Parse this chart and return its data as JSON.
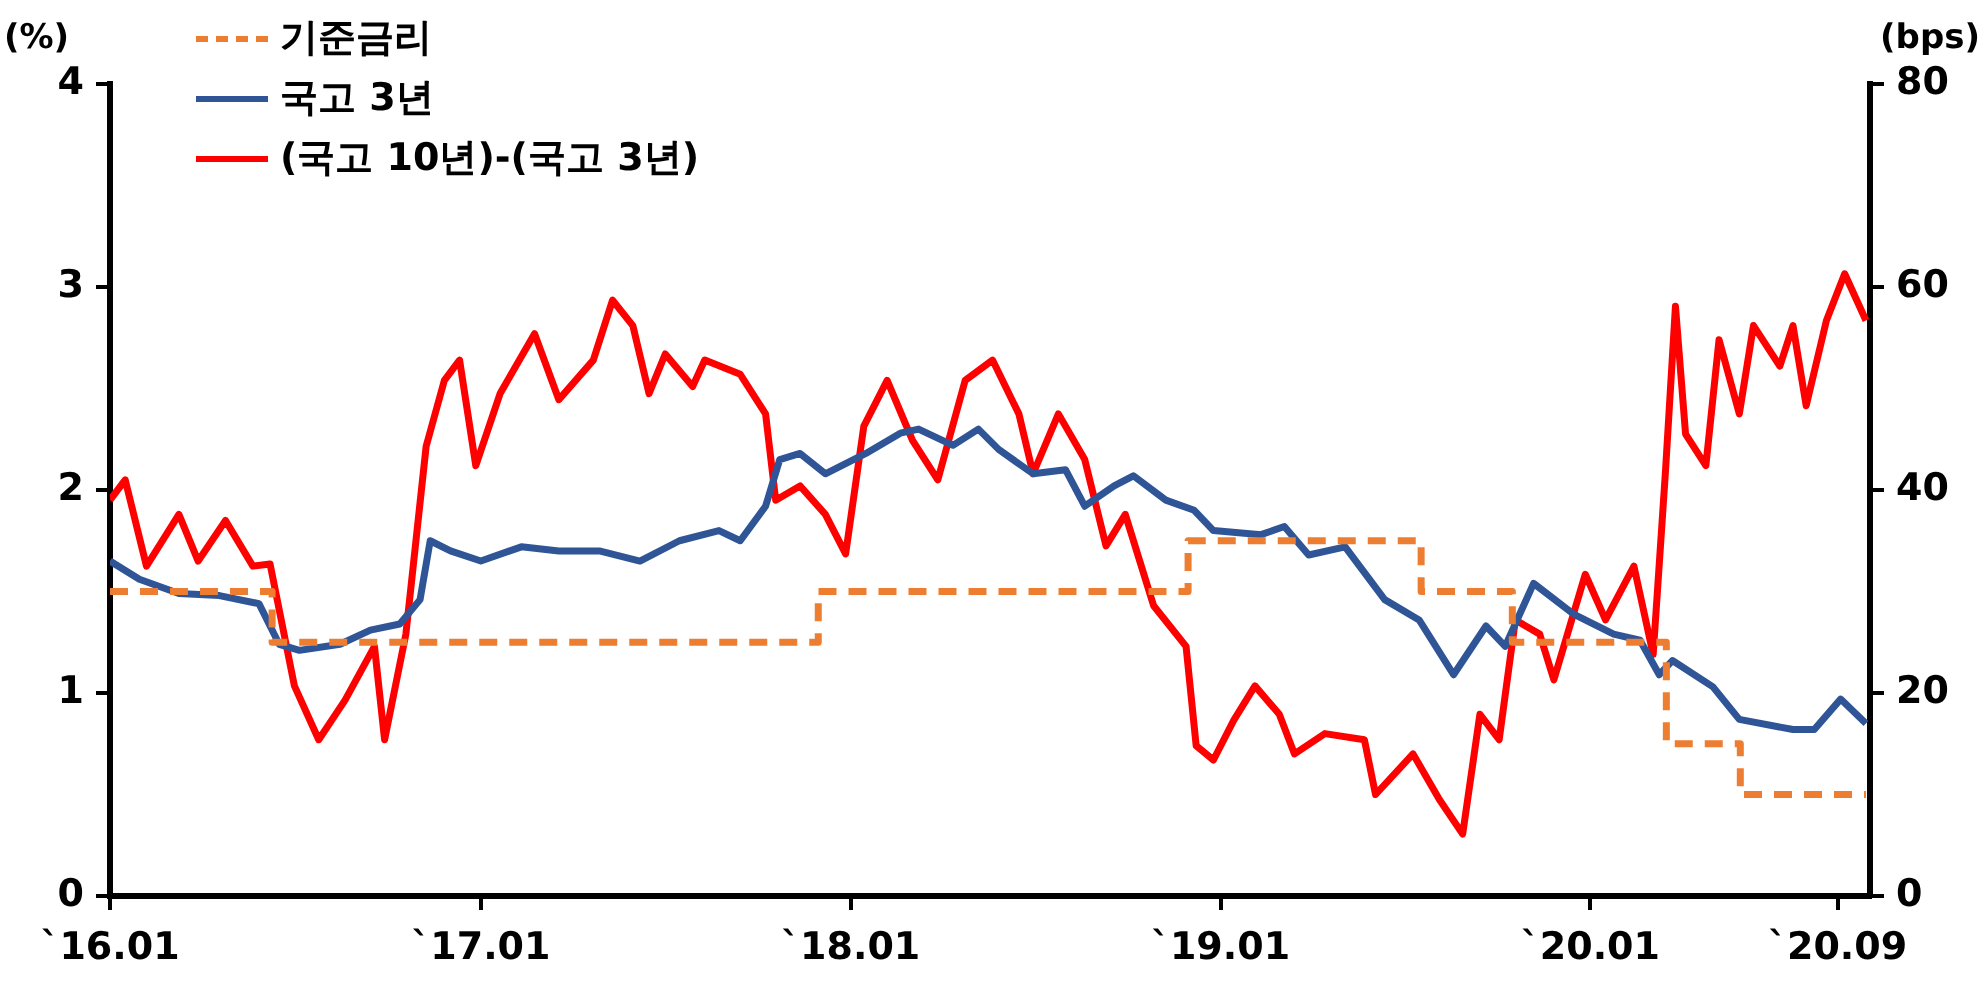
{
  "chart_data": {
    "type": "line",
    "ylabel": "(%)",
    "y2label": "(bps)",
    "xlim": [
      "2016-01-01",
      "2020-10-03"
    ],
    "xticks": [
      {
        "value": "2016-01",
        "label": "`16.01"
      },
      {
        "value": "2017-01",
        "label": "`17.01"
      },
      {
        "value": "2018-01",
        "label": "`18.01"
      },
      {
        "value": "2019-01",
        "label": "`19.01"
      },
      {
        "value": "2020-01",
        "label": "`20.01"
      },
      {
        "value": "2020-09",
        "label": "`20.09"
      }
    ],
    "ylim": [
      0,
      4
    ],
    "yticks": [
      0,
      1,
      2,
      3,
      4
    ],
    "y2lim": [
      0,
      80
    ],
    "y2ticks": [
      0,
      20,
      40,
      60,
      80
    ],
    "grid": false,
    "legend": "top left",
    "marker": "none",
    "series": [
      {
        "name": "기준금리",
        "type": "step",
        "line_style": "dashed",
        "color": "#ed7d31",
        "x": [
          "2016-01-01",
          "2016-06-09",
          "2017-11-30",
          "2018-11-30",
          "2019-07-18",
          "2019-10-16",
          "2020-03-16",
          "2020-05-28",
          "2020-09-29"
        ],
        "values": [
          1.5,
          1.25,
          1.5,
          1.75,
          1.5,
          1.25,
          0.75,
          0.5,
          0.5
        ]
      },
      {
        "name": "국고 3년",
        "color": "#2f5597",
        "x": [
          "2016-01-01",
          "2016-01-30",
          "2016-03-09",
          "2016-04-18",
          "2016-05-27",
          "2016-06-16",
          "2016-07-06",
          "2016-08-15",
          "2016-09-14",
          "2016-10-13",
          "2016-11-02",
          "2016-11-12",
          "2016-12-02",
          "2017-01-01",
          "2017-02-10",
          "2017-03-19",
          "2017-04-28",
          "2017-06-07",
          "2017-07-16",
          "2017-08-24",
          "2017-09-14",
          "2017-10-09",
          "2017-10-23",
          "2017-11-12",
          "2017-12-07",
          "2018-01-16",
          "2018-02-19",
          "2018-03-09",
          "2018-04-12",
          "2018-05-07",
          "2018-05-27",
          "2018-06-30",
          "2018-08-01",
          "2018-08-20",
          "2018-09-18",
          "2018-10-07",
          "2018-11-08",
          "2018-12-06",
          "2018-12-25",
          "2019-02-10",
          "2019-03-05",
          "2019-03-29",
          "2019-05-04",
          "2019-06-12",
          "2019-07-16",
          "2019-08-19",
          "2019-09-20",
          "2019-10-09",
          "2019-11-06",
          "2019-12-15",
          "2020-01-24",
          "2020-02-19",
          "2020-03-09",
          "2020-03-22",
          "2020-05-01",
          "2020-05-27",
          "2020-07-19",
          "2020-08-09",
          "2020-09-04",
          "2020-09-29"
        ],
        "values": [
          1.65,
          1.56,
          1.49,
          1.48,
          1.44,
          1.24,
          1.21,
          1.24,
          1.31,
          1.34,
          1.46,
          1.75,
          1.7,
          1.65,
          1.72,
          1.7,
          1.7,
          1.65,
          1.75,
          1.8,
          1.75,
          1.92,
          2.15,
          2.18,
          2.08,
          2.18,
          2.28,
          2.3,
          2.22,
          2.3,
          2.2,
          2.08,
          2.1,
          1.92,
          2.02,
          2.07,
          1.95,
          1.9,
          1.8,
          1.78,
          1.82,
          1.68,
          1.72,
          1.46,
          1.36,
          1.09,
          1.33,
          1.23,
          1.54,
          1.39,
          1.29,
          1.26,
          1.09,
          1.16,
          1.03,
          0.87,
          0.82,
          0.82,
          0.97,
          0.85
        ]
      },
      {
        "name": "(국고 10년)-(국고 3년)",
        "color": "#ff0000",
        "axis": "y2",
        "x": [
          "2016-01-01",
          "2016-01-16",
          "2016-02-06",
          "2016-03-09",
          "2016-03-28",
          "2016-04-24",
          "2016-05-21",
          "2016-06-07",
          "2016-07-01",
          "2016-07-25",
          "2016-08-20",
          "2016-09-18",
          "2016-09-28",
          "2016-10-19",
          "2016-11-08",
          "2016-11-26",
          "2016-12-11",
          "2016-12-27",
          "2017-01-20",
          "2017-02-23",
          "2017-03-19",
          "2017-04-22",
          "2017-05-11",
          "2017-05-31",
          "2017-06-16",
          "2017-07-02",
          "2017-07-29",
          "2017-08-10",
          "2017-09-14",
          "2017-10-09",
          "2017-10-19",
          "2017-11-12",
          "2017-12-07",
          "2017-12-27",
          "2018-01-14",
          "2018-02-06",
          "2018-03-03",
          "2018-03-28",
          "2018-04-24",
          "2018-05-21",
          "2018-06-16",
          "2018-06-30",
          "2018-07-25",
          "2018-08-20",
          "2018-09-10",
          "2018-09-29",
          "2018-10-27",
          "2018-11-28",
          "2018-12-08",
          "2018-12-25",
          "2019-01-14",
          "2019-02-04",
          "2019-02-28",
          "2019-03-15",
          "2019-04-14",
          "2019-05-23",
          "2019-06-03",
          "2019-07-10",
          "2019-08-05",
          "2019-08-28",
          "2019-09-14",
          "2019-10-03",
          "2019-10-19",
          "2019-11-12",
          "2019-11-26",
          "2019-12-27",
          "2020-01-16",
          "2020-02-13",
          "2020-03-03",
          "2020-03-15",
          "2020-03-25",
          "2020-04-04",
          "2020-04-24",
          "2020-05-07",
          "2020-05-27",
          "2020-06-10",
          "2020-07-06",
          "2020-07-19",
          "2020-08-01",
          "2020-08-21",
          "2020-09-08",
          "2020-09-29"
        ],
        "values": [
          39,
          41,
          32.5,
          37.6,
          33,
          37,
          32.5,
          32.7,
          20.7,
          15.4,
          19.3,
          24.6,
          15.4,
          25.8,
          44.3,
          50.8,
          52.8,
          42.4,
          49.5,
          55.4,
          48.9,
          52.8,
          58.7,
          56.2,
          49.5,
          53.4,
          50.2,
          52.8,
          51.4,
          47.5,
          39,
          40.4,
          37.6,
          33.7,
          46.3,
          50.8,
          44.9,
          41,
          50.8,
          52.8,
          47.5,
          41.6,
          47.5,
          43,
          34.5,
          37.6,
          28.6,
          24.6,
          14.8,
          13.4,
          17.3,
          20.7,
          17.9,
          14,
          16,
          15.4,
          10,
          14,
          9.5,
          6.1,
          17.9,
          15.4,
          27.2,
          25.8,
          21.3,
          31.7,
          27.2,
          32.5,
          23.8,
          41.6,
          58.1,
          45.5,
          42.4,
          54.8,
          47.5,
          56.2,
          52.2,
          56.2,
          48.3,
          56.7,
          61.3,
          56.7
        ]
      }
    ]
  }
}
